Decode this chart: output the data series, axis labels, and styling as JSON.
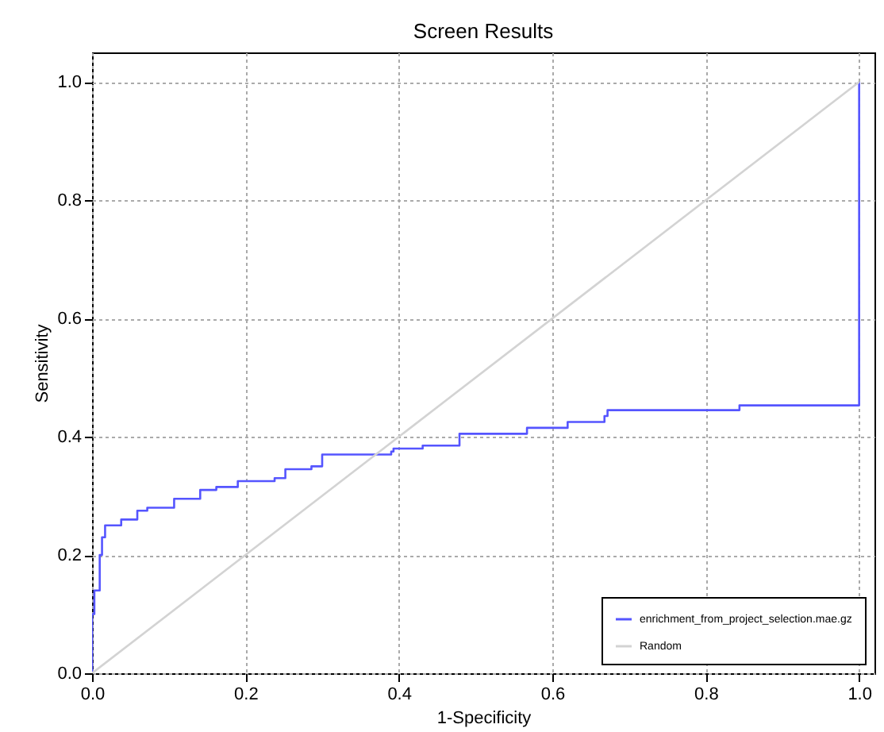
{
  "chart_data": {
    "type": "step",
    "title": "Screen Results",
    "xlabel": "1-Specificity",
    "ylabel": "Sensitivity",
    "xlim": [
      0,
      1.02
    ],
    "ylim": [
      0,
      1.05
    ],
    "xticks": [
      {
        "value": 0,
        "label": "0.0"
      },
      {
        "value": 0.2,
        "label": "0.2"
      },
      {
        "value": 0.4,
        "label": "0.4"
      },
      {
        "value": 0.6,
        "label": "0.6"
      },
      {
        "value": 0.8,
        "label": "0.8"
      },
      {
        "value": 1,
        "label": "1.0"
      }
    ],
    "yticks": [
      {
        "value": 0,
        "label": "0.0"
      },
      {
        "value": 0.2,
        "label": "0.2"
      },
      {
        "value": 0.4,
        "label": "0.4"
      },
      {
        "value": 0.6,
        "label": "0.6"
      },
      {
        "value": 0.8,
        "label": "0.8"
      },
      {
        "value": 1,
        "label": "1.0"
      }
    ],
    "grid": true,
    "legend": "bottom right",
    "line_style": "solid",
    "series": [
      {
        "name": "enrichment_from_project_selection.mae.gz",
        "color": "#5555ff",
        "x": [
          0,
          0,
          0.003,
          0.01,
          0.013,
          0.017,
          0.038,
          0.059,
          0.072,
          0.107,
          0.141,
          0.162,
          0.19,
          0.238,
          0.252,
          0.286,
          0.3,
          0.39,
          0.393,
          0.431,
          0.479,
          0.567,
          0.62,
          0.668,
          0.672,
          0.844,
          1.0,
          1.0
        ],
        "values": [
          0,
          0.1,
          0.14,
          0.2,
          0.23,
          0.25,
          0.26,
          0.275,
          0.28,
          0.295,
          0.31,
          0.315,
          0.325,
          0.33,
          0.345,
          0.35,
          0.37,
          0.375,
          0.38,
          0.385,
          0.405,
          0.415,
          0.425,
          0.435,
          0.445,
          0.453,
          0.453,
          1.0
        ]
      },
      {
        "name": "Random",
        "type": "line",
        "color": "#d3d3d3",
        "x": [
          0,
          1
        ],
        "values": [
          0,
          1
        ]
      }
    ]
  }
}
